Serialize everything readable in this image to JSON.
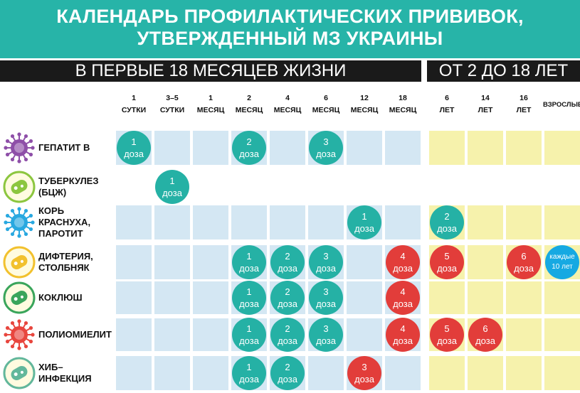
{
  "title": {
    "line1": "КАЛЕНДАРЬ ПРОФИЛАКТИЧЕСКИХ ПРИВИВОК,",
    "line2": "УТВЕРЖДЕННЫЙ МЗ УКРАИНЫ"
  },
  "sections": {
    "left": "В ПЕРВЫЕ 18 МЕСЯЦЕВ ЖИЗНИ",
    "right": "ОТ 2 ДО 18 ЛЕТ"
  },
  "colors": {
    "header": "#27b4a8",
    "bar": "#1a1a1a",
    "dose_teal": "#25b1a5",
    "dose_red": "#e23d3a",
    "dose_blue": "#16a9e2",
    "cell_blue": "#d4e7f3",
    "cell_yellow": "#f6f2ac"
  },
  "chart_data": {
    "type": "table",
    "columns": [
      {
        "top": "1",
        "bottom": "СУТКИ"
      },
      {
        "top": "3–5",
        "bottom": "СУТКИ"
      },
      {
        "top": "1",
        "bottom": "МЕСЯЦ"
      },
      {
        "top": "2",
        "bottom": "МЕСЯЦ"
      },
      {
        "top": "4",
        "bottom": "МЕСЯЦ"
      },
      {
        "top": "6",
        "bottom": "МЕСЯЦ"
      },
      {
        "top": "12",
        "bottom": "МЕСЯЦ"
      },
      {
        "top": "18",
        "bottom": "МЕСЯЦ"
      },
      {
        "top": "6",
        "bottom": "ЛЕТ"
      },
      {
        "top": "14",
        "bottom": "ЛЕТ"
      },
      {
        "top": "16",
        "bottom": "ЛЕТ"
      },
      {
        "top": "ВЗРОСЛЫЕ",
        "bottom": ""
      }
    ],
    "rows": [
      {
        "label": [
          "ГЕПАТИТ В"
        ],
        "icon": "hepatitis-virus-icon",
        "color": "#8e4fa8",
        "cells": [
          1,
          1,
          1,
          1,
          1,
          1,
          1,
          1,
          2,
          2,
          2,
          2
        ],
        "doses": [
          {
            "col": 0,
            "num": "1",
            "text": "доза",
            "color": "teal"
          },
          {
            "col": 3,
            "num": "2",
            "text": "доза",
            "color": "teal"
          },
          {
            "col": 5,
            "num": "3",
            "text": "доза",
            "color": "teal"
          }
        ]
      },
      {
        "label": [
          "ТУБЕРКУЛЕЗ",
          "(БЦЖ)"
        ],
        "icon": "tuberculosis-bacteria-icon",
        "color": "#8cc63f",
        "cells": [
          0,
          0,
          0,
          0,
          0,
          0,
          0,
          0,
          0,
          0,
          0,
          0
        ],
        "doses": [
          {
            "col": 1,
            "num": "1",
            "text": "доза",
            "color": "teal"
          }
        ]
      },
      {
        "label": [
          "КОРЬ",
          "КРАСНУХА,",
          "ПАРОТИТ"
        ],
        "icon": "measles-virus-icon",
        "color": "#29a8e0",
        "cells": [
          1,
          1,
          1,
          1,
          1,
          1,
          1,
          1,
          2,
          2,
          2,
          2
        ],
        "doses": [
          {
            "col": 6,
            "num": "1",
            "text": "доза",
            "color": "teal"
          },
          {
            "col": 8,
            "num": "2",
            "text": "доза",
            "color": "teal"
          }
        ]
      },
      {
        "label": [
          "ДИФТЕРИЯ,",
          "СТОЛБНЯК"
        ],
        "icon": "diphtheria-bacteria-icon",
        "color": "#f2c12e",
        "cells": [
          1,
          1,
          1,
          1,
          1,
          1,
          1,
          1,
          2,
          2,
          2,
          2
        ],
        "doses": [
          {
            "col": 3,
            "num": "1",
            "text": "доза",
            "color": "teal"
          },
          {
            "col": 4,
            "num": "2",
            "text": "доза",
            "color": "teal"
          },
          {
            "col": 5,
            "num": "3",
            "text": "доза",
            "color": "teal"
          },
          {
            "col": 7,
            "num": "4",
            "text": "доза",
            "color": "red"
          },
          {
            "col": 8,
            "num": "5",
            "text": "доза",
            "color": "red"
          },
          {
            "col": 10,
            "num": "6",
            "text": "доза",
            "color": "red"
          },
          {
            "col": 11,
            "num": "каждые",
            "text": "10 лет",
            "color": "blue"
          }
        ]
      },
      {
        "label": [
          "КОКЛЮШ"
        ],
        "icon": "pertussis-bacteria-icon",
        "color": "#3aa55b",
        "cells": [
          1,
          1,
          1,
          1,
          1,
          1,
          1,
          1,
          2,
          2,
          2,
          2
        ],
        "doses": [
          {
            "col": 3,
            "num": "1",
            "text": "доза",
            "color": "teal"
          },
          {
            "col": 4,
            "num": "2",
            "text": "доза",
            "color": "teal"
          },
          {
            "col": 5,
            "num": "3",
            "text": "доза",
            "color": "teal"
          },
          {
            "col": 7,
            "num": "4",
            "text": "доза",
            "color": "red"
          }
        ]
      },
      {
        "label": [
          "ПОЛИОМИЕЛИТ"
        ],
        "icon": "polio-virus-icon",
        "color": "#e8463e",
        "cells": [
          1,
          1,
          1,
          1,
          1,
          1,
          1,
          1,
          2,
          2,
          2,
          2
        ],
        "doses": [
          {
            "col": 3,
            "num": "1",
            "text": "доза",
            "color": "teal"
          },
          {
            "col": 4,
            "num": "2",
            "text": "доза",
            "color": "teal"
          },
          {
            "col": 5,
            "num": "3",
            "text": "доза",
            "color": "teal"
          },
          {
            "col": 7,
            "num": "4",
            "text": "доза",
            "color": "red"
          },
          {
            "col": 8,
            "num": "5",
            "text": "доза",
            "color": "red"
          },
          {
            "col": 9,
            "num": "6",
            "text": "доза",
            "color": "red"
          }
        ]
      },
      {
        "label": [
          "ХИБ–",
          "ИНФЕКЦИЯ"
        ],
        "icon": "hib-bacteria-icon",
        "color": "#62b79b",
        "cells": [
          1,
          1,
          1,
          1,
          1,
          1,
          1,
          1,
          2,
          2,
          2,
          2
        ],
        "doses": [
          {
            "col": 3,
            "num": "1",
            "text": "доза",
            "color": "teal"
          },
          {
            "col": 4,
            "num": "2",
            "text": "доза",
            "color": "teal"
          },
          {
            "col": 6,
            "num": "3",
            "text": "доза",
            "color": "red"
          }
        ]
      }
    ]
  }
}
